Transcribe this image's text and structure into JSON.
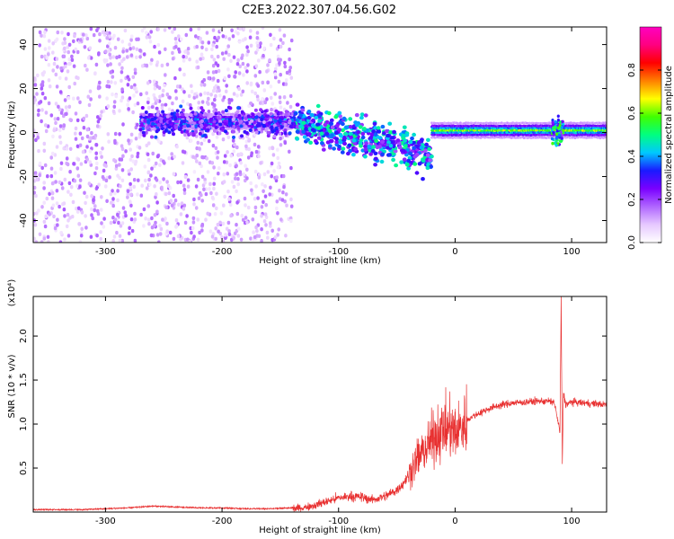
{
  "figure": {
    "title": "C2E3.2022.307.04.56.G02"
  },
  "chart_data": [
    {
      "type": "heatmap",
      "xlabel": "Height of straight line (km)",
      "ylabel": "Frequency (Hz)",
      "xlim": [
        -362,
        130
      ],
      "ylim": [
        -50,
        48
      ],
      "x_ticks": [
        -300,
        -200,
        -100,
        0,
        100
      ],
      "y_ticks": [
        -40,
        -20,
        0,
        20,
        40
      ],
      "x_tick_labels": [
        "-300",
        "-200",
        "-100",
        "0",
        "100"
      ],
      "y_tick_labels": [
        "-40",
        "-20",
        "0",
        "20",
        "40"
      ],
      "grid": false,
      "colorbar": {
        "label": "Normalized spectral amplitude",
        "range": [
          0,
          1
        ],
        "ticks": [
          0.0,
          0.2,
          0.4,
          0.6,
          0.8
        ],
        "tick_labels": [
          "0.0",
          "0.2",
          "0.4",
          "0.6",
          "0.8"
        ],
        "colormap": [
          "#ffffff",
          "#e6c8ff",
          "#b066ff",
          "#7a00ff",
          "#1a1aff",
          "#00c8ff",
          "#00ff80",
          "#40ff00",
          "#ffff00",
          "#ff8000",
          "#ff0000",
          "#ff0080",
          "#ff00c0"
        ]
      },
      "features": [
        {
          "x_range": [
            -362,
            -140
          ],
          "freq_range": [
            -50,
            48
          ],
          "amplitude": 0.1
        },
        {
          "x_range": [
            -270,
            -140
          ],
          "freq_center": 5,
          "freq_width": 6,
          "amplitude": 0.22
        },
        {
          "x_range": [
            -140,
            -20
          ],
          "freq_center_start": 5,
          "freq_center_end": -10,
          "amplitude": 0.3
        },
        {
          "x_range": [
            -20,
            130
          ],
          "freq_center": 1,
          "amplitude": 0.6
        },
        {
          "x_range": [
            83,
            93
          ],
          "freq_center": 1,
          "amplitude": 0.5
        }
      ]
    },
    {
      "type": "line",
      "xlabel": "Height of straight line (km)",
      "ylabel": "SNR (10 * v/v)",
      "y_multiplier_label": "(x10⁴)",
      "xlim": [
        -362,
        130
      ],
      "ylim": [
        0,
        2.45
      ],
      "x_ticks": [
        -300,
        -200,
        -100,
        0,
        100
      ],
      "y_ticks": [
        0.5,
        1.0,
        1.5,
        2.0
      ],
      "x_tick_labels": [
        "-300",
        "-200",
        "-100",
        "0",
        "100"
      ],
      "y_tick_labels": [
        "0.5",
        "1.0",
        "1.5",
        "2.0"
      ],
      "grid": false,
      "line_color": "#e83030",
      "series": [
        {
          "x": [
            -362,
            -340,
            -320,
            -300,
            -280,
            -260,
            -240,
            -220,
            -200,
            -180,
            -160,
            -140,
            -130,
            -120,
            -110,
            -100,
            -90,
            -80,
            -75,
            -70,
            -60,
            -50,
            -45,
            -40,
            -35,
            -30,
            -25,
            -20,
            -15,
            -10,
            -5,
            0,
            5,
            10,
            20,
            30,
            40,
            50,
            60,
            70,
            80,
            85,
            88,
            90,
            91,
            92,
            93,
            95,
            100,
            110,
            120,
            130
          ],
          "values": [
            0.02,
            0.02,
            0.02,
            0.03,
            0.04,
            0.06,
            0.05,
            0.04,
            0.04,
            0.03,
            0.03,
            0.04,
            0.05,
            0.08,
            0.12,
            0.16,
            0.18,
            0.17,
            0.15,
            0.14,
            0.18,
            0.25,
            0.32,
            0.42,
            0.55,
            0.65,
            0.72,
            0.82,
            0.9,
            0.93,
            0.95,
            0.9,
            0.95,
            1.05,
            1.12,
            1.18,
            1.22,
            1.24,
            1.25,
            1.26,
            1.26,
            1.25,
            1.05,
            0.9,
            2.45,
            0.55,
            1.35,
            1.22,
            1.25,
            1.24,
            1.23,
            1.22
          ]
        }
      ]
    }
  ]
}
